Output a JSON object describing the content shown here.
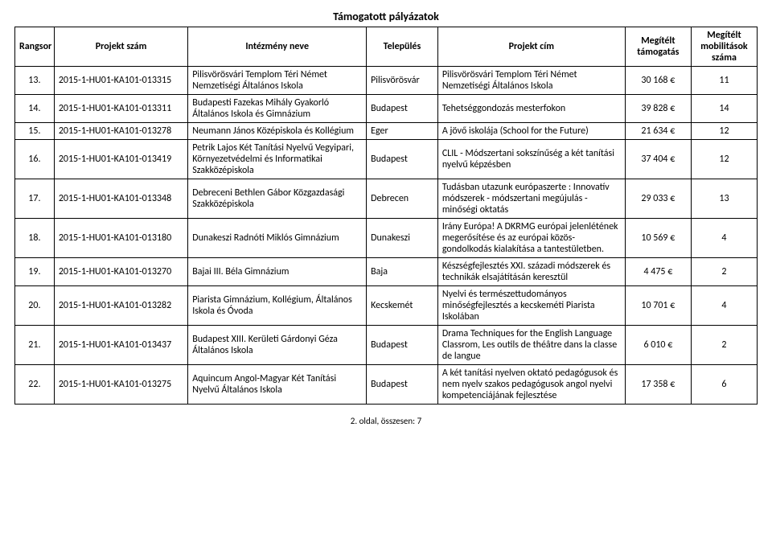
{
  "title": "Támogatott pályázatok",
  "columns": [
    "Rangsor",
    "Projekt szám",
    "Intézmény neve",
    "Település",
    "Projekt cím",
    "Megítélt támogatás",
    "Megítélt mobilitások száma"
  ],
  "rows": [
    {
      "rank": "13.",
      "pnum": "2015-1-HU01-KA101-013315",
      "inst": "Pilisvörösvári Templom Téri Német Nemzetiségi Általános Iskola",
      "town": "Pilisvörösvár",
      "ptitle": "Pilisvörösvári Templom Téri Német Nemzetiségi Általános Iskola",
      "grant": "30 168 €",
      "mob": "11"
    },
    {
      "rank": "14.",
      "pnum": "2015-1-HU01-KA101-013311",
      "inst": "Budapesti Fazekas Mihály Gyakorló Általános Iskola és Gimnázium",
      "town": "Budapest",
      "ptitle": "Tehetséggondozás mesterfokon",
      "grant": "39 828 €",
      "mob": "14"
    },
    {
      "rank": "15.",
      "pnum": "2015-1-HU01-KA101-013278",
      "inst": "Neumann János Középiskola és Kollégium",
      "town": "Eger",
      "ptitle": "A jövő iskolája (School for the Future)",
      "grant": "21 634 €",
      "mob": "12"
    },
    {
      "rank": "16.",
      "pnum": "2015-1-HU01-KA101-013419",
      "inst": "Petrik Lajos Két Tanítási Nyelvű Vegyipari, Környezetvédelmi és Informatikai Szakközépiskola",
      "town": "Budapest",
      "ptitle": "CLIL - Módszertani sokszínűség a két tanítási nyelvű képzésben",
      "grant": "37 404 €",
      "mob": "12"
    },
    {
      "rank": "17.",
      "pnum": "2015-1-HU01-KA101-013348",
      "inst": "Debreceni Bethlen Gábor Közgazdasági Szakközépiskola",
      "town": "Debrecen",
      "ptitle": "Tudásban utazunk európaszerte : Innovatív módszerek - módszertani megújulás - minőségi oktatás",
      "grant": "29 033 €",
      "mob": "13"
    },
    {
      "rank": "18.",
      "pnum": "2015-1-HU01-KA101-013180",
      "inst": "Dunakeszi Radnóti Miklós Gimnázium",
      "town": "Dunakeszi",
      "ptitle": "Irány Európa! A DKRMG európai jelenlétének megerősítése és az európai közös-gondolkodás kialakítása a tantestületben.",
      "grant": "10 569 €",
      "mob": "4"
    },
    {
      "rank": "19.",
      "pnum": "2015-1-HU01-KA101-013270",
      "inst": "Bajai III. Béla Gimnázium",
      "town": "Baja",
      "ptitle": "Készségfejlesztés XXI. századi módszerek és technikák elsajátításán keresztül",
      "grant": "4 475 €",
      "mob": "2"
    },
    {
      "rank": "20.",
      "pnum": "2015-1-HU01-KA101-013282",
      "inst": "Piarista Gimnázium, Kollégium, Általános Iskola és Óvoda",
      "town": "Kecskemét",
      "ptitle": "Nyelvi és természettudományos minőségfejlesztés a kecskeméti Piarista Iskolában",
      "grant": "10 701 €",
      "mob": "4"
    },
    {
      "rank": "21.",
      "pnum": "2015-1-HU01-KA101-013437",
      "inst": "Budapest XIII. Kerületi Gárdonyi Géza Általános Iskola",
      "town": "Budapest",
      "ptitle": "Drama Techniques for the English Language Classrom, Les outils de théâtre dans la classe de langue",
      "grant": "6 010 €",
      "mob": "2"
    },
    {
      "rank": "22.",
      "pnum": "2015-1-HU01-KA101-013275",
      "inst": "Aquincum Angol-Magyar Két Tanítási Nyelvű Általános Iskola",
      "town": "Budapest",
      "ptitle": "A két tanítási nyelven oktató pedagógusok és nem nyelv szakos pedagógusok angol nyelvi kompetenciájának fejlesztése",
      "grant": "17 358 €",
      "mob": "6"
    }
  ],
  "footer": "2. oldal, összesen: 7"
}
